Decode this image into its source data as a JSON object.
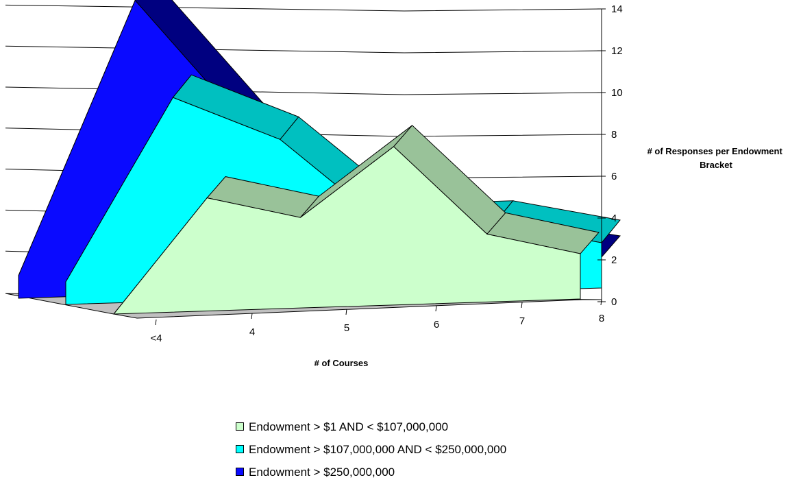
{
  "chart_data": {
    "type": "area",
    "subtype": "3d-area",
    "title": "",
    "xlabel": "# of Courses",
    "ylabel": "# of Responses per Endowment Bracket",
    "categories": [
      "<4",
      "4",
      "5",
      "6",
      "7",
      "8"
    ],
    "y_ticks": [
      "0",
      "2",
      "4",
      "6",
      "8",
      "10",
      "12",
      "14"
    ],
    "ylim": [
      0,
      14
    ],
    "grid": true,
    "legend_position": "bottom",
    "series": [
      {
        "name": "Endowment > $250,000,000",
        "color": "#0a0aff",
        "values": [
          1,
          13,
          7,
          2,
          2,
          1
        ]
      },
      {
        "name": "Endowment > $107,000,000 AND < $250,000,000",
        "color": "#00ffff",
        "values": [
          1,
          9,
          7,
          3,
          3,
          2
        ]
      },
      {
        "name": "Endowment > $1 AND < $107,000,000",
        "color": "#ccffcc",
        "values": [
          0,
          5,
          4,
          7,
          3,
          2
        ]
      }
    ]
  }
}
